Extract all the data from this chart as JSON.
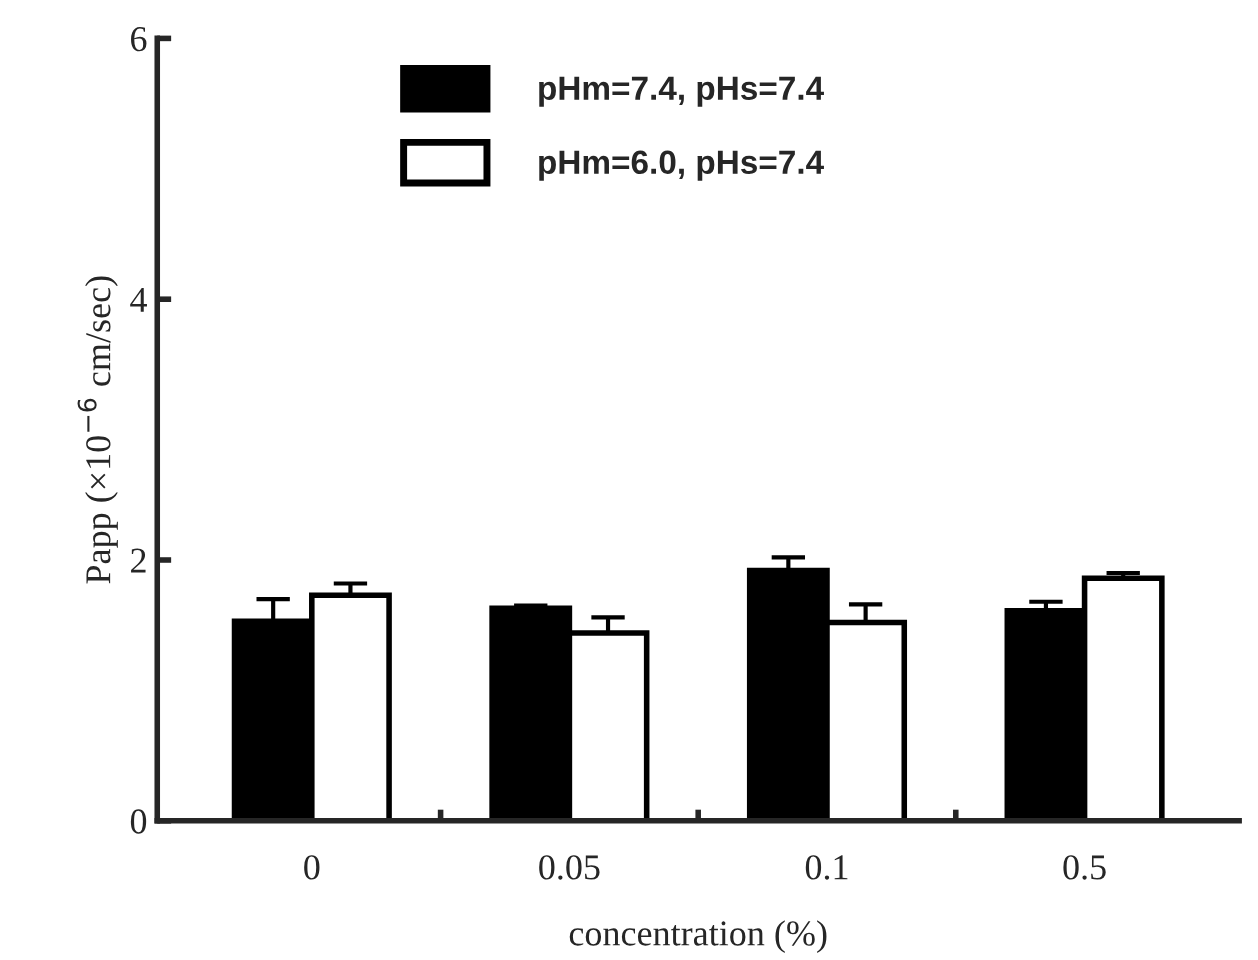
{
  "chart_data": {
    "type": "bar",
    "xlabel": "concentration (%)",
    "ylabel": "Papp (×10$^{−6}$ cm/sec)",
    "categories": [
      "0",
      "0.05",
      "0.1",
      "0.5"
    ],
    "series": [
      {
        "name": "pHm=7.4, pHs=7.4",
        "color": "#000000",
        "values": [
          1.53,
          1.63,
          1.92,
          1.61
        ],
        "errors": [
          [
            1.53,
            1.7
          ],
          [
            1.63,
            1.65
          ],
          [
            1.92,
            2.02
          ],
          [
            1.61,
            1.68
          ]
        ]
      },
      {
        "name": "pHm=6.0, pHs=7.4",
        "color": "#ffffff",
        "values": [
          1.73,
          1.44,
          1.52,
          1.86
        ],
        "errors": [
          [
            1.73,
            1.82
          ],
          [
            1.44,
            1.56
          ],
          [
            1.52,
            1.66
          ],
          [
            1.86,
            1.9
          ]
        ]
      }
    ],
    "ylim": [
      0,
      6
    ],
    "yticks": [
      0,
      2,
      4,
      6
    ],
    "grid": false,
    "legend": "top left"
  }
}
